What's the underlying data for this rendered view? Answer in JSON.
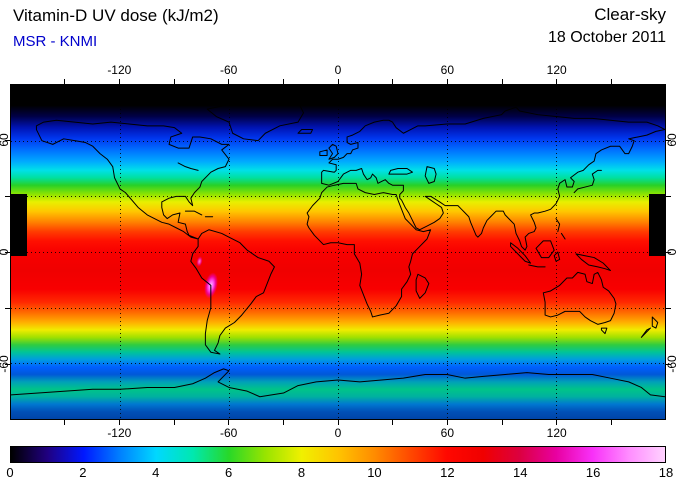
{
  "header": {
    "title": "Vitamin-D UV dose (kJ/m2)",
    "source": "MSR - KNMI",
    "source_color": "#0000cc",
    "condition": "Clear-sky",
    "date": "18 October 2011"
  },
  "chart_data": {
    "type": "heatmap",
    "title": "Vitamin-D UV dose (kJ/m2)",
    "source": "MSR - KNMI",
    "condition": "Clear-sky",
    "date": "18 October 2011",
    "projection": "equirectangular world map",
    "lon_range": [
      -180,
      180
    ],
    "lat_range": [
      -90,
      90
    ],
    "lon_tick_labels": [
      -120,
      -60,
      0,
      60,
      120
    ],
    "lat_tick_labels": [
      60,
      0,
      -60
    ],
    "lon_gridlines": [
      -120,
      -60,
      0,
      60,
      120
    ],
    "lat_gridlines": [
      60,
      30,
      0,
      -30,
      -60
    ],
    "grid_style": "dotted",
    "colorbar": {
      "min": 0,
      "max": 18,
      "unit": "kJ/m2",
      "tick_labels": [
        0,
        2,
        4,
        6,
        8,
        10,
        12,
        14,
        16,
        18
      ],
      "stops": [
        {
          "value": 0,
          "color": "#000000"
        },
        {
          "value": 1,
          "color": "#200080"
        },
        {
          "value": 2,
          "color": "#0018ff"
        },
        {
          "value": 3,
          "color": "#0080ff"
        },
        {
          "value": 4,
          "color": "#00d8ff"
        },
        {
          "value": 5,
          "color": "#00e8b0"
        },
        {
          "value": 6,
          "color": "#28d828"
        },
        {
          "value": 7,
          "color": "#98e400"
        },
        {
          "value": 8,
          "color": "#f0f000"
        },
        {
          "value": 9,
          "color": "#ffc400"
        },
        {
          "value": 10,
          "color": "#ff8c00"
        },
        {
          "value": 11,
          "color": "#ff4800"
        },
        {
          "value": 12,
          "color": "#ff0800"
        },
        {
          "value": 13,
          "color": "#f00000"
        },
        {
          "value": 14,
          "color": "#dc0040"
        },
        {
          "value": 15,
          "color": "#e800a0"
        },
        {
          "value": 16,
          "color": "#f830f8"
        },
        {
          "value": 17,
          "color": "#ff8cff"
        },
        {
          "value": 18,
          "color": "#ffd2ff"
        }
      ]
    },
    "zonal_profile": [
      {
        "lat": 90,
        "dose_kj": 0,
        "color": "#000000"
      },
      {
        "lat": 79,
        "dose_kj": 0,
        "color": "#000000"
      },
      {
        "lat": 73,
        "dose_kj": 0.4,
        "color": "#000048"
      },
      {
        "lat": 67,
        "dose_kj": 1.2,
        "color": "#0014b4"
      },
      {
        "lat": 61,
        "dose_kj": 2,
        "color": "#0038f0"
      },
      {
        "lat": 55,
        "dose_kj": 2.6,
        "color": "#0070ff"
      },
      {
        "lat": 49,
        "dose_kj": 3.4,
        "color": "#00a8ff"
      },
      {
        "lat": 44,
        "dose_kj": 4.2,
        "color": "#00e0e8"
      },
      {
        "lat": 40,
        "dose_kj": 5,
        "color": "#00e0a0"
      },
      {
        "lat": 36,
        "dose_kj": 6,
        "color": "#28d028"
      },
      {
        "lat": 31,
        "dose_kj": 7,
        "color": "#90e400"
      },
      {
        "lat": 27,
        "dose_kj": 7.8,
        "color": "#e8f000"
      },
      {
        "lat": 22,
        "dose_kj": 9,
        "color": "#ffc800"
      },
      {
        "lat": 16,
        "dose_kj": 10,
        "color": "#ff8000"
      },
      {
        "lat": 11,
        "dose_kj": 11,
        "color": "#ff3c00"
      },
      {
        "lat": 6,
        "dose_kj": 11.6,
        "color": "#ff1000"
      },
      {
        "lat": 0,
        "dose_kj": 12,
        "color": "#f80000"
      },
      {
        "lat": -10,
        "dose_kj": 12.4,
        "color": "#f00000"
      },
      {
        "lat": -20,
        "dose_kj": 12.2,
        "color": "#f80000"
      },
      {
        "lat": -27,
        "dose_kj": 11.4,
        "color": "#ff2800"
      },
      {
        "lat": -33,
        "dose_kj": 10,
        "color": "#ff7000"
      },
      {
        "lat": -38,
        "dose_kj": 9,
        "color": "#ffb000"
      },
      {
        "lat": -42,
        "dose_kj": 8,
        "color": "#f0ec00"
      },
      {
        "lat": -46,
        "dose_kj": 7,
        "color": "#a0e000"
      },
      {
        "lat": -50,
        "dose_kj": 6,
        "color": "#30cc40"
      },
      {
        "lat": -54,
        "dose_kj": 5,
        "color": "#00c498"
      },
      {
        "lat": -58,
        "dose_kj": 4.2,
        "color": "#009ce0"
      },
      {
        "lat": -62,
        "dose_kj": 3.4,
        "color": "#0060ff"
      },
      {
        "lat": -66,
        "dose_kj": 3.2,
        "color": "#0058d8"
      },
      {
        "lat": -70,
        "dose_kj": 4.4,
        "color": "#00a0b8"
      },
      {
        "lat": -74,
        "dose_kj": 5.2,
        "color": "#00c488"
      },
      {
        "lat": -78,
        "dose_kj": 4.8,
        "color": "#00b0a0"
      },
      {
        "lat": -82,
        "dose_kj": 3.6,
        "color": "#0078d0"
      },
      {
        "lat": -86,
        "dose_kj": 3,
        "color": "#0050b8"
      },
      {
        "lat": -90,
        "dose_kj": 2.8,
        "color": "#0044a8"
      }
    ],
    "hotspots": [
      {
        "lon": -70,
        "lat": -18,
        "lon_span": 9,
        "lat_span": 18,
        "approx_dose_kj": 17
      },
      {
        "lon": -76,
        "lat": -5,
        "lon_span": 4,
        "lat_span": 7,
        "approx_dose_kj": 14.5
      }
    ],
    "missing_data_strips": [
      {
        "lon_min": -180,
        "lon_max": -171,
        "lat_min": -2,
        "lat_max": 31
      },
      {
        "lon_min": 171,
        "lon_max": 180,
        "lat_min": -2,
        "lat_max": 31
      }
    ]
  }
}
